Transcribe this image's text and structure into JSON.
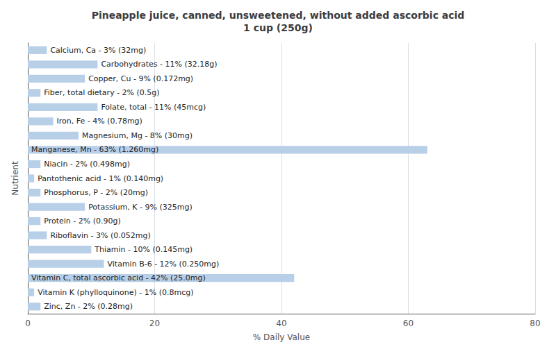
{
  "chart_data": {
    "type": "bar",
    "orientation": "horizontal",
    "title": "Pineapple juice, canned, unsweetened, without added ascorbic acid\n1 cup (250g)",
    "xlabel": "% Daily Value",
    "ylabel": "Nutrient",
    "categories": [
      "Calcium, Ca - 3% (32mg)",
      "Carbohydrates - 11% (32.18g)",
      "Copper, Cu - 9% (0.172mg)",
      "Fiber, total dietary - 2% (0.5g)",
      "Folate, total - 11% (45mcg)",
      "Iron, Fe - 4% (0.78mg)",
      "Magnesium, Mg - 8% (30mg)",
      "Manganese, Mn - 63% (1.260mg)",
      "Niacin - 2% (0.498mg)",
      "Pantothenic acid - 1% (0.140mg)",
      "Phosphorus, P - 2% (20mg)",
      "Potassium, K - 9% (325mg)",
      "Protein - 2% (0.90g)",
      "Riboflavin - 3% (0.052mg)",
      "Thiamin - 10% (0.145mg)",
      "Vitamin B-6 - 12% (0.250mg)",
      "Vitamin C, total ascorbic acid - 42% (25.0mg)",
      "Vitamin K (phylloquinone) - 1% (0.8mcg)",
      "Zinc, Zn - 2% (0.28mg)"
    ],
    "values": [
      3,
      11,
      9,
      2,
      11,
      4,
      8,
      63,
      2,
      1,
      2,
      9,
      2,
      3,
      10,
      12,
      42,
      1,
      2
    ],
    "color": "#b8cfe8",
    "xlim": [
      0,
      80
    ],
    "xticks": [
      0,
      20,
      40,
      60,
      80
    ],
    "grid": true,
    "tick_labels": "x"
  }
}
